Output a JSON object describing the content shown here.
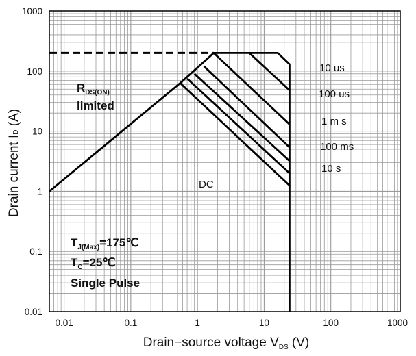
{
  "chart_data": {
    "type": "line",
    "xlabel": {
      "main": "Drain−source voltage V",
      "sub": "DS",
      "unit": " (V)"
    },
    "ylabel": {
      "main": "Drain current I",
      "sub": "D",
      "unit": " (A)"
    },
    "xscale": "log",
    "yscale": "log",
    "xlim": [
      0.006,
      1100
    ],
    "ylim": [
      0.01,
      1000
    ],
    "grid": true,
    "x_tick_labels": [
      {
        "v": 0.01,
        "t": "0.01"
      },
      {
        "v": 0.1,
        "t": "0.1"
      },
      {
        "v": 1,
        "t": "1"
      },
      {
        "v": 10,
        "t": "10"
      },
      {
        "v": 100,
        "t": "100"
      },
      {
        "v": 1000,
        "t": "1000"
      }
    ],
    "y_tick_labels": [
      {
        "v": 0.01,
        "t": "0.01"
      },
      {
        "v": 0.1,
        "t": "0.1"
      },
      {
        "v": 1,
        "t": "1"
      },
      {
        "v": 10,
        "t": "10"
      },
      {
        "v": 100,
        "t": "100"
      },
      {
        "v": 1000,
        "t": "1000"
      }
    ],
    "series": [
      {
        "name": "DC",
        "points": [
          [
            0.006,
            1.0
          ],
          [
            0.55,
            63
          ],
          [
            24,
            1.25
          ],
          [
            24,
            0.01
          ]
        ]
      },
      {
        "name": "10 s",
        "points": [
          [
            0.7,
            75
          ],
          [
            24,
            2.0
          ]
        ]
      },
      {
        "name": "100 ms",
        "points": [
          [
            0.9,
            90
          ],
          [
            24,
            3.2
          ]
        ]
      },
      {
        "name": "1 m s",
        "points": [
          [
            1.25,
            120
          ],
          [
            24,
            5.4
          ]
        ]
      },
      {
        "name": "100 us",
        "points": [
          [
            1.75,
            200
          ],
          [
            24,
            13
          ]
        ]
      },
      {
        "name": "10 us",
        "points": [
          [
            6,
            200
          ],
          [
            24,
            48
          ]
        ]
      },
      {
        "name": "envelope",
        "points": [
          [
            0.55,
            63
          ],
          [
            1.75,
            200
          ],
          [
            16,
            200
          ],
          [
            24,
            130
          ],
          [
            24,
            1.25
          ]
        ]
      }
    ],
    "rds_on_limit": {
      "points": [
        [
          0.006,
          200
        ],
        [
          1.75,
          200
        ]
      ],
      "style": "dashed"
    },
    "annotations": {
      "rds_line1_main": "R",
      "rds_line1_sub": "DS(ON)",
      "rds_line2": "limited",
      "dc": "DC",
      "tj_main": "T",
      "tj_sub": "J(Max)",
      "tj_value": "=175℃",
      "tc_main": "T",
      "tc_sub": "C",
      "tc_value": "=25℃",
      "pulse": "Single Pulse",
      "curve_labels": [
        "10 us",
        "100 us",
        "1 m s",
        "100 ms",
        "10 s"
      ]
    },
    "colors": {
      "line": "#000000",
      "grid": "#9a9a9a",
      "axis": "#000000"
    }
  }
}
